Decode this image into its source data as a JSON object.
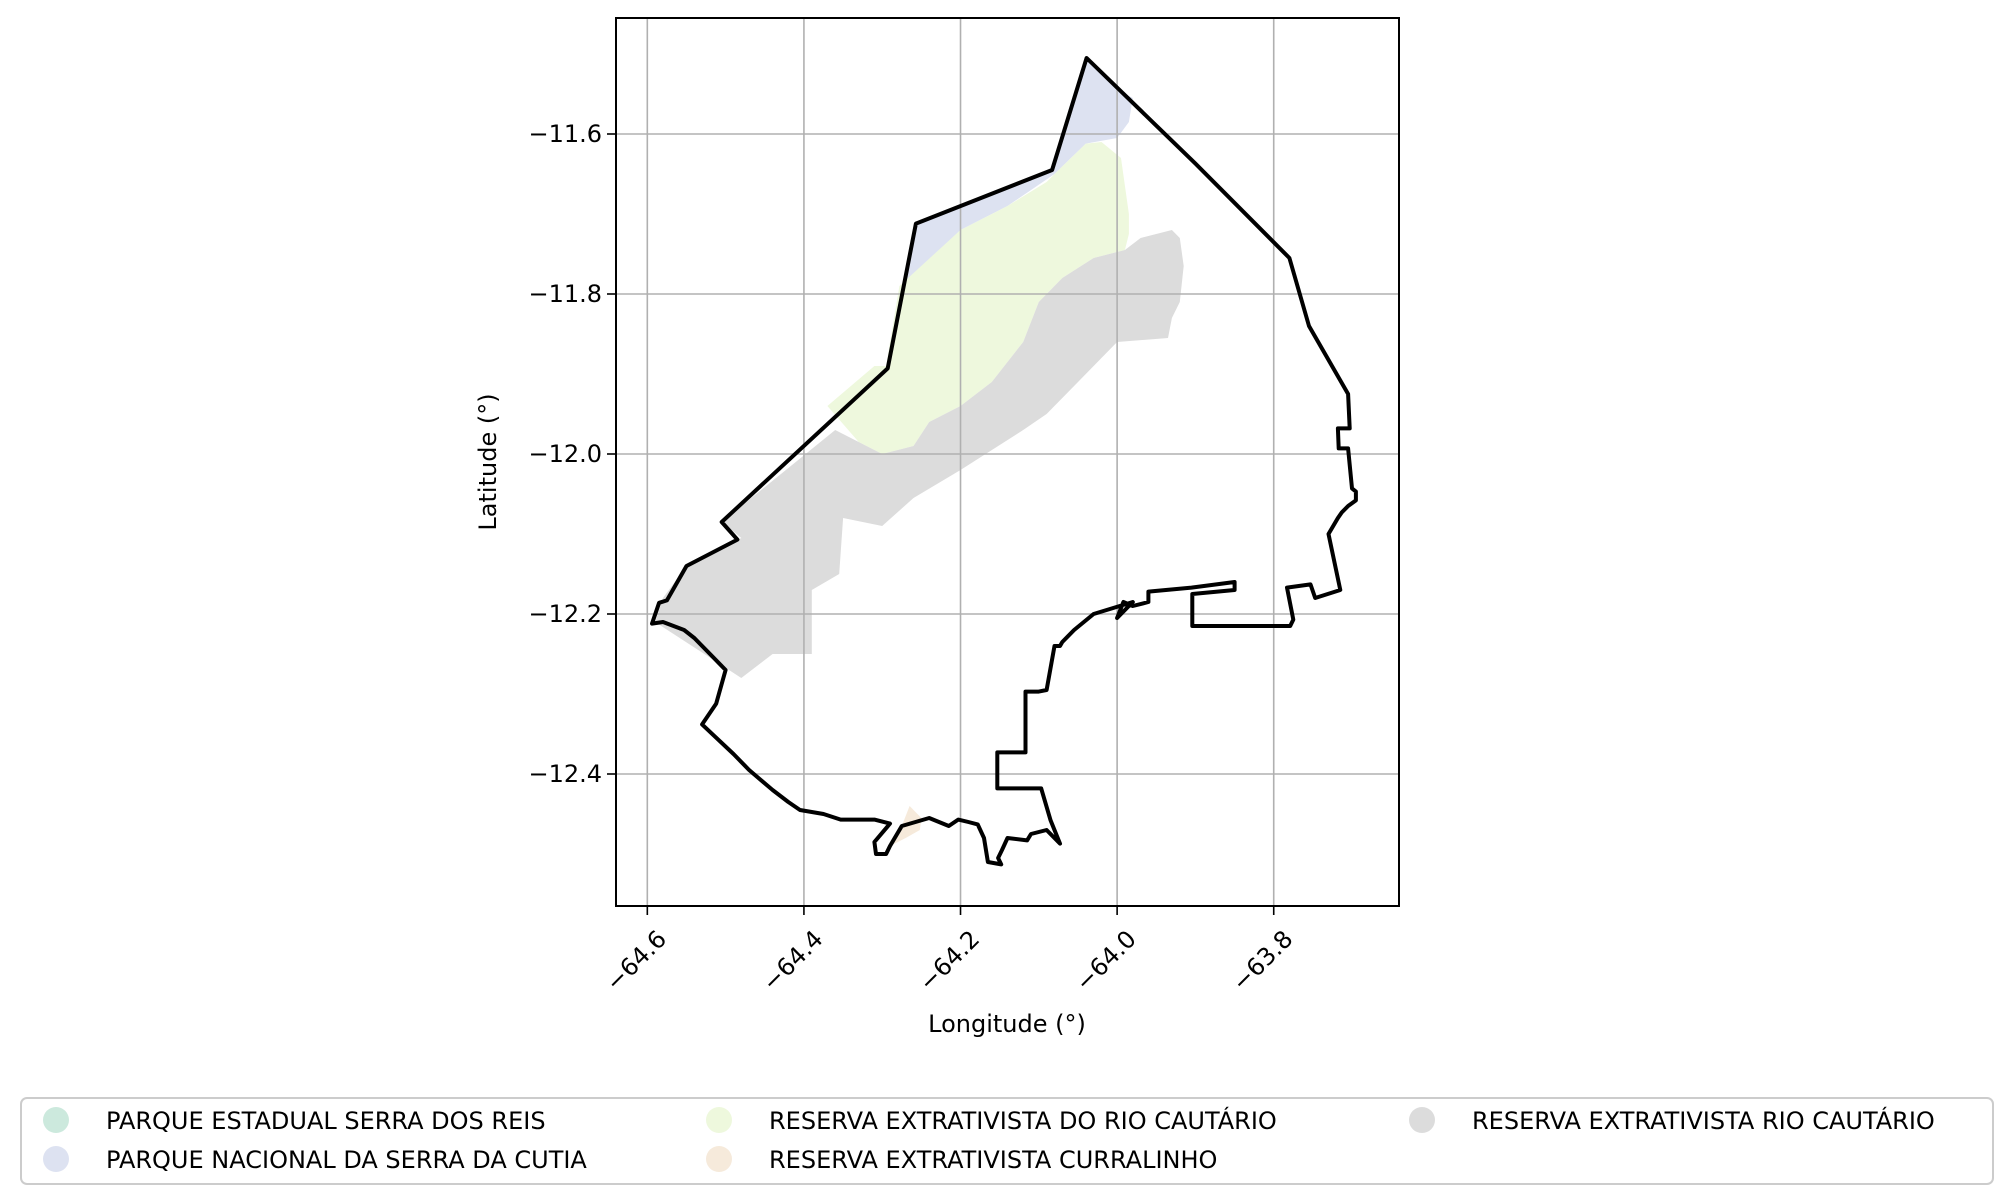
{
  "chart_data": {
    "type": "map",
    "title": "",
    "xlabel": "Longitude (°)",
    "ylabel": "Latitude (°)",
    "xlim": [
      -64.64,
      -63.64
    ],
    "ylim": [
      -12.565,
      -11.455
    ],
    "x_ticks": [
      -64.6,
      -64.4,
      -64.2,
      -64.0,
      -63.8
    ],
    "x_tick_labels": [
      "−64.6",
      "−64.4",
      "−64.2",
      "−64.0",
      "−63.8"
    ],
    "y_ticks": [
      -11.6,
      -11.8,
      -12.0,
      -12.2,
      -12.4
    ],
    "y_tick_labels": [
      "−11.6",
      "−11.8",
      "−12.0",
      "−12.2",
      "−12.4"
    ],
    "grid": true,
    "legend_position": "below",
    "legend": [
      {
        "label": "PARQUE ESTADUAL SERRA DOS REIS",
        "color": "#cce9dd"
      },
      {
        "label": "PARQUE NACIONAL DA SERRA DA CUTIA",
        "color": "#dde2f1"
      },
      {
        "label": "RESERVA EXTRATIVISTA  DO RIO CAUTÁRIO",
        "color": "#eef8dd"
      },
      {
        "label": "RESERVA EXTRATIVISTA CURRALINHO",
        "color": "#f6eadb"
      },
      {
        "label": "RESERVA EXTRATIVISTA RIO CAUTÁRIO",
        "color": "#dcdcdc"
      }
    ],
    "areas": [
      {
        "name": "PARQUE NACIONAL DA SERRA DA CUTIA",
        "color": "#dde2f1",
        "points": [
          [
            -64.039,
            -11.505
          ],
          [
            -64.0,
            -11.545
          ],
          [
            -63.98,
            -11.555
          ],
          [
            -63.985,
            -11.585
          ],
          [
            -64.0,
            -11.605
          ],
          [
            -64.04,
            -11.612
          ],
          [
            -64.08,
            -11.65
          ],
          [
            -64.14,
            -11.69
          ],
          [
            -64.2,
            -11.72
          ],
          [
            -64.27,
            -11.785
          ],
          [
            -64.257,
            -11.712
          ],
          [
            -64.083,
            -11.645
          ]
        ]
      },
      {
        "name": "RESERVA EXTRATIVISTA  DO RIO CAUTÁRIO",
        "color": "#eef8dd",
        "points": [
          [
            -64.02,
            -11.61
          ],
          [
            -63.995,
            -11.63
          ],
          [
            -63.985,
            -11.7
          ],
          [
            -63.985,
            -11.725
          ],
          [
            -63.99,
            -11.745
          ],
          [
            -64.03,
            -11.755
          ],
          [
            -64.07,
            -11.78
          ],
          [
            -64.1,
            -11.81
          ],
          [
            -64.12,
            -11.86
          ],
          [
            -64.16,
            -11.91
          ],
          [
            -64.2,
            -11.94
          ],
          [
            -64.24,
            -11.96
          ],
          [
            -64.26,
            -11.99
          ],
          [
            -64.3,
            -12.0
          ],
          [
            -64.33,
            -11.985
          ],
          [
            -64.37,
            -11.94
          ],
          [
            -64.31,
            -11.89
          ],
          [
            -64.295,
            -11.89
          ],
          [
            -64.278,
            -11.79
          ],
          [
            -64.2,
            -11.72
          ],
          [
            -64.14,
            -11.69
          ],
          [
            -64.09,
            -11.66
          ],
          [
            -64.08,
            -11.65
          ],
          [
            -64.04,
            -11.612
          ]
        ]
      },
      {
        "name": "RESERVA EXTRATIVISTA RIO CAUTÁRIO",
        "color": "#dcdcdc",
        "points": [
          [
            -63.93,
            -11.72
          ],
          [
            -63.92,
            -11.73
          ],
          [
            -63.915,
            -11.765
          ],
          [
            -63.92,
            -11.81
          ],
          [
            -63.93,
            -11.83
          ],
          [
            -63.935,
            -11.855
          ],
          [
            -64.0,
            -11.86
          ],
          [
            -64.05,
            -11.91
          ],
          [
            -64.09,
            -11.95
          ],
          [
            -64.12,
            -11.97
          ],
          [
            -64.2,
            -12.02
          ],
          [
            -64.26,
            -12.055
          ],
          [
            -64.3,
            -12.09
          ],
          [
            -64.35,
            -12.08
          ],
          [
            -64.355,
            -12.15
          ],
          [
            -64.39,
            -12.17
          ],
          [
            -64.39,
            -12.25
          ],
          [
            -64.44,
            -12.25
          ],
          [
            -64.48,
            -12.28
          ],
          [
            -64.59,
            -12.21
          ],
          [
            -64.58,
            -12.18
          ],
          [
            -64.55,
            -12.14
          ],
          [
            -64.48,
            -12.105
          ],
          [
            -64.505,
            -12.085
          ],
          [
            -64.36,
            -11.97
          ],
          [
            -64.33,
            -11.985
          ],
          [
            -64.3,
            -12.0
          ],
          [
            -64.26,
            -11.99
          ],
          [
            -64.24,
            -11.96
          ],
          [
            -64.2,
            -11.94
          ],
          [
            -64.16,
            -11.91
          ],
          [
            -64.12,
            -11.86
          ],
          [
            -64.1,
            -11.81
          ],
          [
            -64.07,
            -11.78
          ],
          [
            -64.03,
            -11.755
          ],
          [
            -63.99,
            -11.745
          ],
          [
            -63.97,
            -11.73
          ]
        ]
      },
      {
        "name": "RESERVA EXTRATIVISTA CURRALINHO",
        "color": "#f6eadb",
        "points": [
          [
            -64.265,
            -12.44
          ],
          [
            -64.25,
            -12.455
          ],
          [
            -64.252,
            -12.47
          ],
          [
            -64.27,
            -12.48
          ],
          [
            -64.29,
            -12.49
          ],
          [
            -64.275,
            -12.465
          ]
        ]
      }
    ],
    "boundary": [
      [
        -64.039,
        -11.505
      ],
      [
        -63.9,
        -11.637
      ],
      [
        -63.78,
        -11.755
      ],
      [
        -63.755,
        -11.84
      ],
      [
        -63.705,
        -11.925
      ],
      [
        -63.703,
        -11.968
      ],
      [
        -63.718,
        -11.968
      ],
      [
        -63.717,
        -11.993
      ],
      [
        -63.705,
        -11.993
      ],
      [
        -63.7,
        -12.043
      ],
      [
        -63.695,
        -12.047
      ],
      [
        -63.695,
        -12.058
      ],
      [
        -63.705,
        -12.065
      ],
      [
        -63.713,
        -12.073
      ],
      [
        -63.718,
        -12.08
      ],
      [
        -63.73,
        -12.1
      ],
      [
        -63.715,
        -12.17
      ],
      [
        -63.747,
        -12.18
      ],
      [
        -63.753,
        -12.163
      ],
      [
        -63.783,
        -12.167
      ],
      [
        -63.775,
        -12.207
      ],
      [
        -63.779,
        -12.215
      ],
      [
        -63.904,
        -12.215
      ],
      [
        -63.904,
        -12.175
      ],
      [
        -63.85,
        -12.17
      ],
      [
        -63.85,
        -12.16
      ],
      [
        -63.905,
        -12.167
      ],
      [
        -63.96,
        -12.172
      ],
      [
        -63.96,
        -12.185
      ],
      [
        -63.98,
        -12.19
      ],
      [
        -63.992,
        -12.185
      ],
      [
        -64.0,
        -12.205
      ],
      [
        -63.995,
        -12.2
      ],
      [
        -63.98,
        -12.185
      ],
      [
        -64.03,
        -12.2
      ],
      [
        -64.055,
        -12.22
      ],
      [
        -64.07,
        -12.235
      ],
      [
        -64.073,
        -12.24
      ],
      [
        -64.08,
        -12.24
      ],
      [
        -64.09,
        -12.295
      ],
      [
        -64.1,
        -12.297
      ],
      [
        -64.117,
        -12.297
      ],
      [
        -64.117,
        -12.373
      ],
      [
        -64.153,
        -12.373
      ],
      [
        -64.153,
        -12.418
      ],
      [
        -64.097,
        -12.418
      ],
      [
        -64.085,
        -12.458
      ],
      [
        -64.073,
        -12.487
      ],
      [
        -64.09,
        -12.47
      ],
      [
        -64.11,
        -12.475
      ],
      [
        -64.115,
        -12.483
      ],
      [
        -64.14,
        -12.48
      ],
      [
        -64.147,
        -12.495
      ],
      [
        -64.152,
        -12.505
      ],
      [
        -64.148,
        -12.513
      ],
      [
        -64.165,
        -12.51
      ],
      [
        -64.17,
        -12.48
      ],
      [
        -64.178,
        -12.463
      ],
      [
        -64.19,
        -12.46
      ],
      [
        -64.203,
        -12.457
      ],
      [
        -64.215,
        -12.465
      ],
      [
        -64.24,
        -12.455
      ],
      [
        -64.275,
        -12.465
      ],
      [
        -64.29,
        -12.49
      ],
      [
        -64.295,
        -12.5
      ],
      [
        -64.308,
        -12.5
      ],
      [
        -64.31,
        -12.485
      ],
      [
        -64.29,
        -12.462
      ],
      [
        -64.31,
        -12.457
      ],
      [
        -64.353,
        -12.457
      ],
      [
        -64.375,
        -12.45
      ],
      [
        -64.405,
        -12.445
      ],
      [
        -64.42,
        -12.435
      ],
      [
        -64.44,
        -12.42
      ],
      [
        -64.47,
        -12.395
      ],
      [
        -64.49,
        -12.375
      ],
      [
        -64.515,
        -12.352
      ],
      [
        -64.53,
        -12.338
      ],
      [
        -64.512,
        -12.312
      ],
      [
        -64.5,
        -12.27
      ],
      [
        -64.52,
        -12.25
      ],
      [
        -64.54,
        -12.23
      ],
      [
        -64.553,
        -12.22
      ],
      [
        -64.58,
        -12.21
      ],
      [
        -64.594,
        -12.212
      ],
      [
        -64.585,
        -12.186
      ],
      [
        -64.575,
        -12.183
      ],
      [
        -64.55,
        -12.14
      ],
      [
        -64.485,
        -12.107
      ],
      [
        -64.505,
        -12.085
      ],
      [
        -64.293,
        -11.893
      ],
      [
        -64.257,
        -11.712
      ],
      [
        -64.083,
        -11.645
      ],
      [
        -64.039,
        -11.505
      ]
    ]
  }
}
